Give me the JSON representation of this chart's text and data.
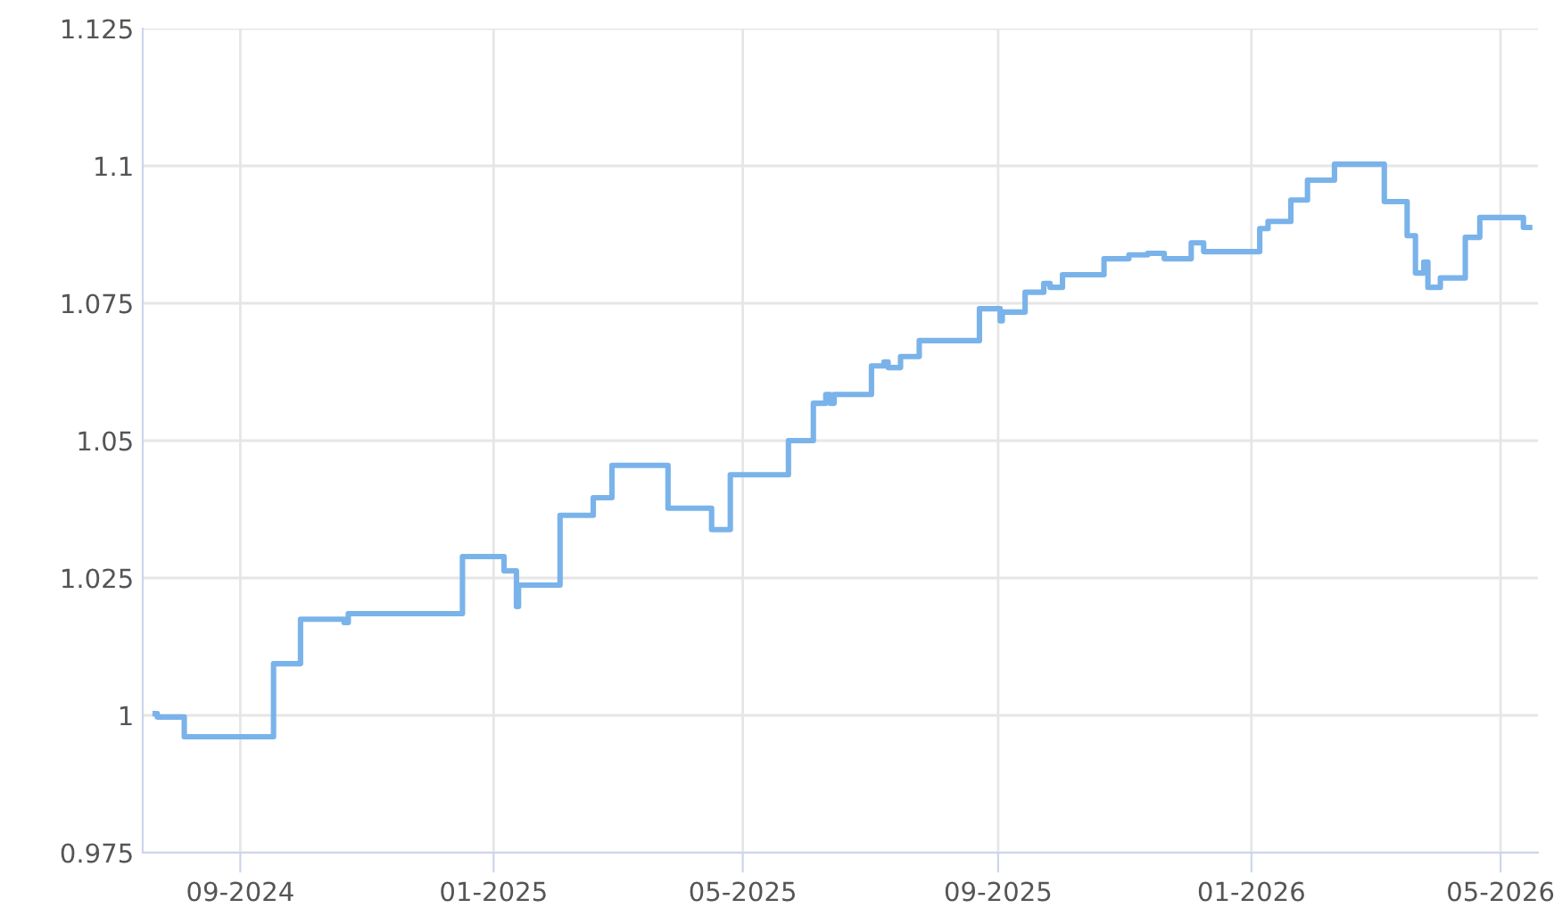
{
  "chart_data": {
    "type": "step",
    "series": [
      {
        "color": "#7ab3ea",
        "x": [
          "2024-07-22",
          "2024-07-23",
          "2024-08-05",
          "2024-09-17",
          "2024-09-30",
          "2024-10-21",
          "2024-10-23",
          "2024-12-17",
          "2025-01-06",
          "2025-01-12",
          "2025-01-13",
          "2025-02-02",
          "2025-02-18",
          "2025-02-27",
          "2025-03-26",
          "2025-04-16",
          "2025-04-25",
          "2025-05-23",
          "2025-06-04",
          "2025-06-10",
          "2025-06-12",
          "2025-06-14",
          "2025-07-02",
          "2025-07-08",
          "2025-07-10",
          "2025-07-16",
          "2025-07-25",
          "2025-08-23",
          "2025-09-02",
          "2025-09-03",
          "2025-09-14",
          "2025-09-23",
          "2025-09-26",
          "2025-10-02",
          "2025-10-22",
          "2025-11-03",
          "2025-11-12",
          "2025-11-20",
          "2025-12-03",
          "2025-12-09",
          "2026-01-03",
          "2026-01-05",
          "2026-01-09",
          "2026-01-20",
          "2026-01-28",
          "2026-02-10",
          "2026-03-06",
          "2026-03-17",
          "2026-03-21",
          "2026-03-25",
          "2026-03-27",
          "2026-04-02",
          "2026-04-14",
          "2026-04-21",
          "2026-05-12",
          "2026-05-15"
        ],
        "values": [
          1.0003,
          0.9997,
          0.9961,
          1.0094,
          1.0175,
          1.0169,
          1.0185,
          1.0289,
          1.0263,
          1.0198,
          1.0237,
          1.0364,
          1.0396,
          1.0455,
          1.0377,
          1.0338,
          1.0438,
          1.05,
          1.0568,
          1.0584,
          1.0568,
          1.0584,
          1.0636,
          1.0643,
          1.0633,
          1.0653,
          1.0682,
          1.074,
          1.0718,
          1.0734,
          1.077,
          1.0786,
          1.0779,
          1.0802,
          1.0831,
          1.0838,
          1.0841,
          1.0831,
          1.086,
          1.0844,
          1.0844,
          1.0886,
          1.0899,
          1.0938,
          1.0974,
          1.1003,
          1.0935,
          1.0873,
          1.0805,
          1.0825,
          1.0779,
          1.0796,
          1.087,
          1.0906,
          1.0888,
          1.0888
        ]
      }
    ],
    "xlim": [
      "2024-07-16",
      "2026-05-19"
    ],
    "xticks": [
      {
        "value": "2024-09-01",
        "label": "09-2024"
      },
      {
        "value": "2025-01-01",
        "label": "01-2025"
      },
      {
        "value": "2025-05-01",
        "label": "05-2025"
      },
      {
        "value": "2025-09-01",
        "label": "09-2025"
      },
      {
        "value": "2026-01-01",
        "label": "01-2026"
      },
      {
        "value": "2026-05-01",
        "label": "05-2026"
      }
    ],
    "ylim": [
      0.975,
      1.125
    ],
    "yticks": [
      0.975,
      1,
      1.025,
      1.05,
      1.075,
      1.1,
      1.125
    ],
    "grid": true,
    "legend": false
  }
}
